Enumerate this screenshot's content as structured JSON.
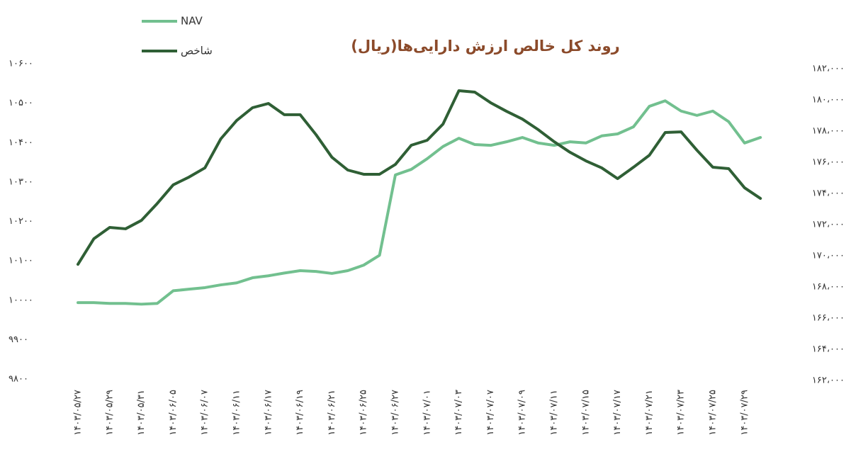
{
  "chart_data": {
    "type": "line",
    "title": "روند کل خالص ارزش دارایی‌ها(ریال)",
    "categories": [
      "۱۴۰۳/۰۵/۲۷",
      null,
      "۱۴۰۳/۰۵/۲۹",
      null,
      "۱۴۰۳/۰۵/۳۱",
      null,
      "۱۴۰۳/۰۶/۰۵",
      null,
      "۱۴۰۳/۰۶/۰۷",
      null,
      "۱۴۰۳/۰۶/۱۱",
      null,
      "۱۴۰۳/۰۶/۱۷",
      null,
      "۱۴۰۳/۰۶/۱۹",
      null,
      "۱۴۰۳/۰۶/۲۱",
      null,
      "۱۴۰۳/۰۶/۲۵",
      null,
      "۱۴۰۳/۰۶/۲۷",
      null,
      "۱۴۰۳/۰۷/۰۱",
      null,
      "۱۴۰۳/۰۷/۰۳",
      null,
      "۱۴۰۳/۰۷/۰۷",
      null,
      "۱۴۰۳/۰۷/۰۹",
      null,
      "۱۴۰۳/۰۷/۱۱",
      null,
      "۱۴۰۳/۰۷/۱۵",
      null,
      "۱۴۰۳/۰۷/۱۷",
      null,
      "۱۴۰۳/۰۷/۲۱",
      null,
      "۱۴۰۳/۰۷/۲۳",
      null,
      "۱۴۰۳/۰۷/۲۵",
      null,
      "۱۴۰۳/۰۷/۲۹",
      null
    ],
    "series": [
      {
        "name": "NAV",
        "color": "#72c08f",
        "values": [
          9994,
          9994,
          9992,
          9992,
          9990,
          9992,
          10024,
          10028,
          10032,
          10039,
          10044,
          10057,
          10062,
          10069,
          10075,
          10073,
          10068,
          10075,
          10089,
          10114,
          10318,
          10332,
          10359,
          10390,
          10411,
          10395,
          10393,
          10402,
          10413,
          10399,
          10393,
          10402,
          10399,
          10417,
          10422,
          10440,
          10492,
          10506,
          10480,
          10469,
          10480,
          10453,
          10399,
          10413
        ]
      },
      {
        "name": "شاخص",
        "color": "#2f5f35",
        "axis": "y2",
        "values": [
          169450,
          171090,
          171820,
          171730,
          172270,
          173360,
          174550,
          175050,
          175640,
          177500,
          178680,
          179500,
          179770,
          179050,
          179050,
          177770,
          176320,
          175500,
          175230,
          175230,
          175860,
          177090,
          177410,
          178450,
          180590,
          180500,
          179820,
          179270,
          178770,
          178090,
          177320,
          176640,
          176090,
          175640,
          174950,
          175680,
          176450,
          177910,
          177950,
          176770,
          175680,
          175590,
          174360,
          173680
        ]
      }
    ],
    "ylim": [
      9800,
      10600
    ],
    "yticks": [
      {
        "value": 9800,
        "label": "۹۸۰۰"
      },
      {
        "value": 9900,
        "label": "۹۹۰۰"
      },
      {
        "value": 10000,
        "label": "۱۰۰۰۰"
      },
      {
        "value": 10100,
        "label": "۱۰۱۰۰"
      },
      {
        "value": 10200,
        "label": "۱۰۲۰۰"
      },
      {
        "value": 10300,
        "label": "۱۰۳۰۰"
      },
      {
        "value": 10400,
        "label": "۱۰۴۰۰"
      },
      {
        "value": 10500,
        "label": "۱۰۵۰۰"
      },
      {
        "value": 10600,
        "label": "۱۰۶۰۰"
      }
    ],
    "y2lim": [
      162000,
      182000
    ],
    "y2ticks": [
      {
        "value": 162000,
        "label": "۱۶۲،۰۰۰"
      },
      {
        "value": 164000,
        "label": "۱۶۴،۰۰۰"
      },
      {
        "value": 166000,
        "label": "۱۶۶،۰۰۰"
      },
      {
        "value": 168000,
        "label": "۱۶۸،۰۰۰"
      },
      {
        "value": 170000,
        "label": "۱۷۰،۰۰۰"
      },
      {
        "value": 172000,
        "label": "۱۷۲،۰۰۰"
      },
      {
        "value": 174000,
        "label": "۱۷۴،۰۰۰"
      },
      {
        "value": 176000,
        "label": "۱۷۶،۰۰۰"
      },
      {
        "value": 178000,
        "label": "۱۷۸،۰۰۰"
      },
      {
        "value": 180000,
        "label": "۱۸۰،۰۰۰"
      },
      {
        "value": 182000,
        "label": "۱۸۲،۰۰۰"
      }
    ]
  }
}
